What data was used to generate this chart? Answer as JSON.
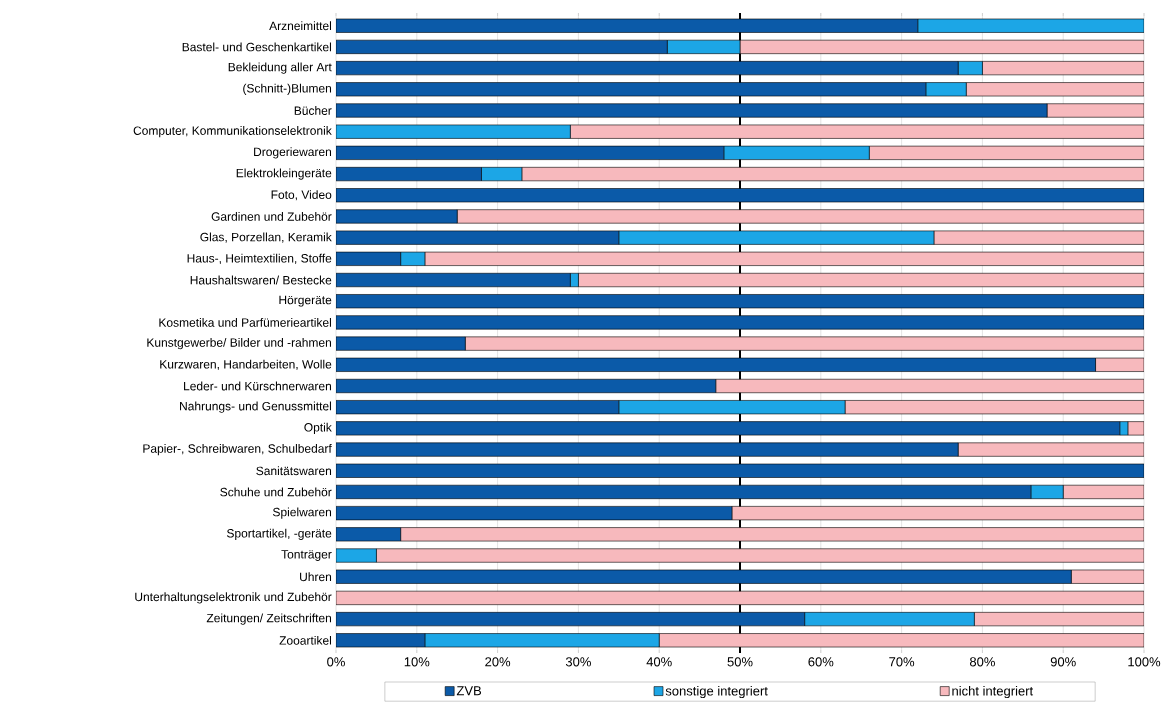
{
  "chart_data": {
    "type": "bar",
    "orientation": "horizontal",
    "stacked": true,
    "categories": [
      "Arzneimittel",
      "Bastel- und Geschenkartikel",
      "Bekleidung aller Art",
      "(Schnitt-)Blumen",
      "Bücher",
      "Computer, Kommunikationselektronik",
      "Drogeriewaren",
      "Elektrokleingeräte",
      "Foto, Video",
      "Gardinen und Zubehör",
      "Glas, Porzellan, Keramik",
      "Haus-, Heimtextilien, Stoffe",
      "Haushaltswaren/ Bestecke",
      "Hörgeräte",
      "Kosmetika und Parfümerieartikel",
      "Kunstgewerbe/ Bilder und -rahmen",
      "Kurzwaren, Handarbeiten, Wolle",
      "Leder- und Kürschnerwaren",
      "Nahrungs- und Genussmittel",
      "Optik",
      "Papier-, Schreibwaren, Schulbedarf",
      "Sanitätswaren",
      "Schuhe und Zubehör",
      "Spielwaren",
      "Sportartikel, -geräte",
      "Tonträger",
      "Uhren",
      "Unterhaltungselektronik und Zubehör",
      "Zeitungen/ Zeitschriften",
      "Zooartikel"
    ],
    "series": [
      {
        "name": "ZVB",
        "color": "#0b5aa8",
        "values": [
          72,
          41,
          77,
          73,
          88,
          0,
          48,
          18,
          100,
          15,
          35,
          8,
          29,
          100,
          100,
          16,
          94,
          47,
          35,
          97,
          77,
          100,
          86,
          49,
          8,
          0,
          91,
          0,
          58,
          11
        ]
      },
      {
        "name": "sonstige integriert",
        "color": "#1ca6e6",
        "values": [
          28,
          9,
          3,
          5,
          0,
          29,
          18,
          5,
          0,
          0,
          39,
          3,
          1,
          0,
          0,
          0,
          0,
          0,
          28,
          1,
          0,
          0,
          4,
          0,
          0,
          5,
          0,
          0,
          21,
          29
        ]
      },
      {
        "name": "nicht integriert",
        "color": "#f7b9bd",
        "values": [
          0,
          50,
          20,
          22,
          12,
          71,
          34,
          77,
          0,
          85,
          26,
          89,
          70,
          0,
          0,
          84,
          6,
          53,
          37,
          2,
          23,
          0,
          10,
          51,
          92,
          95,
          9,
          100,
          21,
          60
        ]
      }
    ],
    "xlim": [
      0,
      100
    ],
    "xticks": [
      {
        "value": 0,
        "label": "0%"
      },
      {
        "value": 10,
        "label": "10%"
      },
      {
        "value": 20,
        "label": "20%"
      },
      {
        "value": 30,
        "label": "30%"
      },
      {
        "value": 40,
        "label": "40%"
      },
      {
        "value": 50,
        "label": "50%"
      },
      {
        "value": 60,
        "label": "60%"
      },
      {
        "value": 70,
        "label": "70%"
      },
      {
        "value": 80,
        "label": "80%"
      },
      {
        "value": 90,
        "label": "90%"
      },
      {
        "value": 100,
        "label": "100%"
      }
    ],
    "grid": "x",
    "legend": "bottom",
    "ref_lines": [
      {
        "axis": "x",
        "value": 50,
        "color": "#000000"
      }
    ]
  }
}
